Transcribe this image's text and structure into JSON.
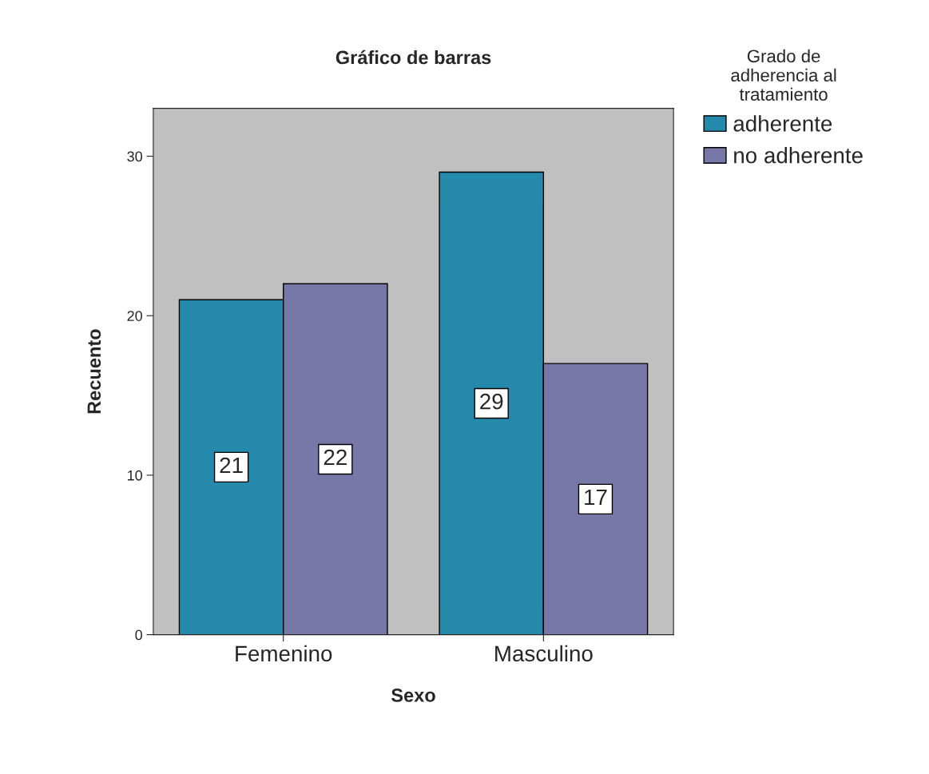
{
  "chart_data": {
    "type": "bar",
    "title": "Gráfico de barras",
    "xlabel": "Sexo",
    "ylabel": "Recuento",
    "legend_title": "Grado de\nadherencia al\ntratamiento",
    "categories": [
      "Femenino",
      "Masculino"
    ],
    "series": [
      {
        "name": "adherente",
        "color": "#2489ab",
        "values": [
          21,
          29
        ]
      },
      {
        "name": "no adherente",
        "color": "#7878a8",
        "values": [
          22,
          17
        ]
      }
    ],
    "ylim": [
      0,
      33
    ],
    "yticks": [
      0,
      10,
      20,
      30
    ],
    "data_labels": true,
    "legend": "right",
    "grid": false
  }
}
